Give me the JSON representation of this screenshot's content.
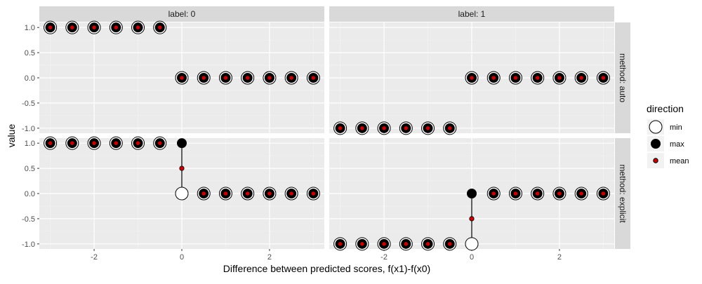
{
  "chart_data": {
    "type": "scatter",
    "xlabel": "Difference between predicted scores, f(x1)-f(x0)",
    "ylabel": "value",
    "xlim": [
      -3.25,
      3.25
    ],
    "ylim": [
      -1.1,
      1.1
    ],
    "x_ticks": [
      -2,
      0,
      2
    ],
    "x_tick_labels": [
      "-2",
      "0",
      "2"
    ],
    "y_ticks": [
      -1,
      -0.5,
      0,
      0.5,
      1
    ],
    "y_tick_labels": [
      "-1.0",
      "-0.5",
      "0.0",
      "0.5",
      "1.0"
    ],
    "grid": true,
    "legend_position": "right",
    "col_facets": [
      "label: 0",
      "label: 1"
    ],
    "row_facets": [
      "method: auto",
      "method: explicit"
    ],
    "legend": {
      "title": "direction",
      "entries": [
        {
          "name": "min",
          "fill": "#ffffff",
          "stroke": "#000000"
        },
        {
          "name": "max",
          "fill": "#000000",
          "stroke": "#000000"
        },
        {
          "name": "mean",
          "fill": "#cc0000",
          "stroke": "#000000"
        }
      ]
    },
    "x": [
      -3,
      -2.5,
      -2,
      -1.5,
      -1,
      -0.5,
      0,
      0.5,
      1,
      1.5,
      2,
      2.5,
      3
    ],
    "panels": [
      {
        "row": "method: auto",
        "col": "label: 0",
        "min": [
          1,
          1,
          1,
          1,
          1,
          1,
          0,
          0,
          0,
          0,
          0,
          0,
          0
        ],
        "max": [
          1,
          1,
          1,
          1,
          1,
          1,
          0,
          0,
          0,
          0,
          0,
          0,
          0
        ],
        "mean": [
          1,
          1,
          1,
          1,
          1,
          1,
          0,
          0,
          0,
          0,
          0,
          0,
          0
        ]
      },
      {
        "row": "method: auto",
        "col": "label: 1",
        "min": [
          -1,
          -1,
          -1,
          -1,
          -1,
          -1,
          0,
          0,
          0,
          0,
          0,
          0,
          0
        ],
        "max": [
          -1,
          -1,
          -1,
          -1,
          -1,
          -1,
          0,
          0,
          0,
          0,
          0,
          0,
          0
        ],
        "mean": [
          -1,
          -1,
          -1,
          -1,
          -1,
          -1,
          0,
          0,
          0,
          0,
          0,
          0,
          0
        ]
      },
      {
        "row": "method: explicit",
        "col": "label: 0",
        "min": [
          1,
          1,
          1,
          1,
          1,
          1,
          0,
          0,
          0,
          0,
          0,
          0,
          0
        ],
        "max": [
          1,
          1,
          1,
          1,
          1,
          1,
          1,
          0,
          0,
          0,
          0,
          0,
          0
        ],
        "mean": [
          1,
          1,
          1,
          1,
          1,
          1,
          0.5,
          0,
          0,
          0,
          0,
          0,
          0
        ]
      },
      {
        "row": "method: explicit",
        "col": "label: 1",
        "min": [
          -1,
          -1,
          -1,
          -1,
          -1,
          -1,
          -1,
          0,
          0,
          0,
          0,
          0,
          0
        ],
        "max": [
          -1,
          -1,
          -1,
          -1,
          -1,
          -1,
          0,
          0,
          0,
          0,
          0,
          0,
          0
        ],
        "mean": [
          -1,
          -1,
          -1,
          -1,
          -1,
          -1,
          -0.5,
          0,
          0,
          0,
          0,
          0,
          0
        ]
      }
    ],
    "colors": {
      "panel_background": "#ebebeb",
      "strip_background": "#d9d9d9",
      "grid_major": "#ffffff",
      "grid_minor": "#f5f5f5",
      "mean_point": "#cc0000"
    }
  }
}
